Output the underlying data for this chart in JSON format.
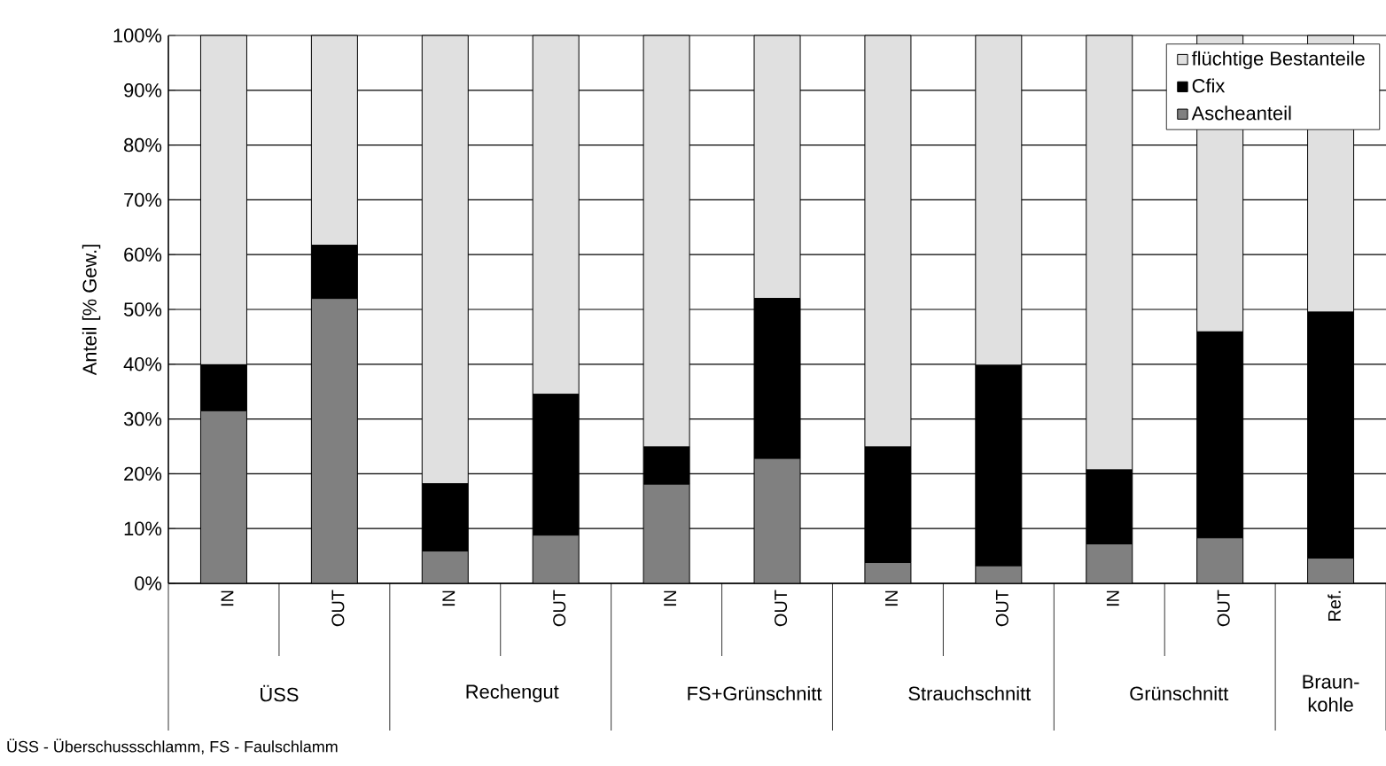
{
  "chart_data": {
    "type": "bar",
    "stacked": true,
    "ylabel": "Anteil [% Gew.]",
    "categories": [
      "IN",
      "OUT",
      "IN",
      "OUT",
      "IN",
      "OUT",
      "IN",
      "OUT",
      "IN",
      "OUT",
      "Ref."
    ],
    "series": [
      {
        "name": "Ascheanteil",
        "color": "#808080",
        "values": [
          31.5,
          52.0,
          5.9,
          8.8,
          18.1,
          22.8,
          3.8,
          3.2,
          7.2,
          8.3,
          4.6
        ]
      },
      {
        "name": "Cfix",
        "color": "#000000",
        "values": [
          8.4,
          9.7,
          12.3,
          25.7,
          6.8,
          29.2,
          21.1,
          36.6,
          13.5,
          37.6,
          44.9
        ]
      },
      {
        "name": "flüchtige Bestanteile",
        "color": "#e0e0e0",
        "values": [
          60.1,
          38.3,
          81.8,
          65.5,
          75.1,
          48.0,
          75.1,
          60.2,
          79.3,
          54.1,
          50.5
        ]
      }
    ],
    "ylim": [
      0,
      100
    ],
    "yticks": [
      {
        "value": 0,
        "label": "0%"
      },
      {
        "value": 10,
        "label": "10%"
      },
      {
        "value": 20,
        "label": "20%"
      },
      {
        "value": 30,
        "label": "30%"
      },
      {
        "value": 40,
        "label": "40%"
      },
      {
        "value": 50,
        "label": "50%"
      },
      {
        "value": 60,
        "label": "60%"
      },
      {
        "value": 70,
        "label": "70%"
      },
      {
        "value": 80,
        "label": "80%"
      },
      {
        "value": 90,
        "label": "90%"
      },
      {
        "value": 100,
        "label": "100%"
      }
    ],
    "grid": "y",
    "legend": "top right",
    "annotations": [
      "ÜSS",
      "Rechengut",
      "FS+Grünschnitt",
      "Strauchschnitt",
      "Grünschnitt",
      "Braun-kohle",
      "ÜSS - Überschussschlamm, FS - Faulschlamm"
    ]
  }
}
